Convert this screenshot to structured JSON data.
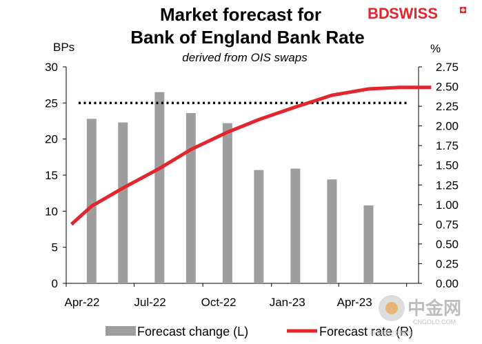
{
  "chart_data": {
    "type": "bar+line",
    "title_line1": "Market forecast for",
    "title_line2": "Bank of England Bank Rate",
    "subtitle": "derived from OIS swaps",
    "left_axis": {
      "unit": "BPs",
      "ylim": [
        0,
        30
      ],
      "ticks": [
        0,
        5,
        10,
        15,
        20,
        25,
        30
      ]
    },
    "right_axis": {
      "unit": "%",
      "ylim": [
        0,
        2.75
      ],
      "ticks": [
        "0.00",
        "0.25",
        "0.50",
        "0.75",
        "1.00",
        "1.25",
        "1.50",
        "1.75",
        "2.00",
        "2.25",
        "2.50",
        "2.75"
      ]
    },
    "x_axis": {
      "tick_labels": [
        "Apr-22",
        "Jul-22",
        "Oct-22",
        "Jan-23",
        "Apr-23"
      ]
    },
    "reference_line": {
      "axis": "left",
      "value": 25,
      "style": "dotted"
    },
    "bars": {
      "name": "Forecast change (L)",
      "color": "#9e9e9e",
      "points": [
        {
          "date": "2022-05-05",
          "value": 22.8
        },
        {
          "date": "2022-06-16",
          "value": 22.3
        },
        {
          "date": "2022-08-04",
          "value": 26.5
        },
        {
          "date": "2022-09-15",
          "value": 23.6
        },
        {
          "date": "2022-11-03",
          "value": 22.2
        },
        {
          "date": "2022-12-15",
          "value": 15.7
        },
        {
          "date": "2023-02-02",
          "value": 15.9
        },
        {
          "date": "2023-03-23",
          "value": 14.4
        },
        {
          "date": "2023-05-11",
          "value": 10.8
        }
      ]
    },
    "line": {
      "name": "Forecast rate (R)",
      "color": "#e3262e",
      "points": [
        {
          "date": "2022-04-08",
          "value": 0.75
        },
        {
          "date": "2022-05-05",
          "value": 0.98
        },
        {
          "date": "2022-06-16",
          "value": 1.21
        },
        {
          "date": "2022-08-04",
          "value": 1.46
        },
        {
          "date": "2022-09-15",
          "value": 1.7
        },
        {
          "date": "2022-11-03",
          "value": 1.92
        },
        {
          "date": "2022-12-15",
          "value": 2.08
        },
        {
          "date": "2023-02-02",
          "value": 2.24
        },
        {
          "date": "2023-03-23",
          "value": 2.39
        },
        {
          "date": "2023-05-11",
          "value": 2.47
        },
        {
          "date": "2023-06-22",
          "value": 2.49
        },
        {
          "date": "2023-08-03",
          "value": 2.49
        }
      ]
    },
    "legend": {
      "position": "bottom"
    }
  },
  "branding": {
    "logo_text_bd": "BD",
    "logo_text_swiss": "SWISS",
    "watermark_cn": "中金网",
    "watermark_en": "CNGOLD.COM",
    "watermark_sub": "中金财经新媒体"
  },
  "colors": {
    "bar": "#9e9e9e",
    "line": "#e3262e",
    "brand_red": "#e3262e"
  }
}
